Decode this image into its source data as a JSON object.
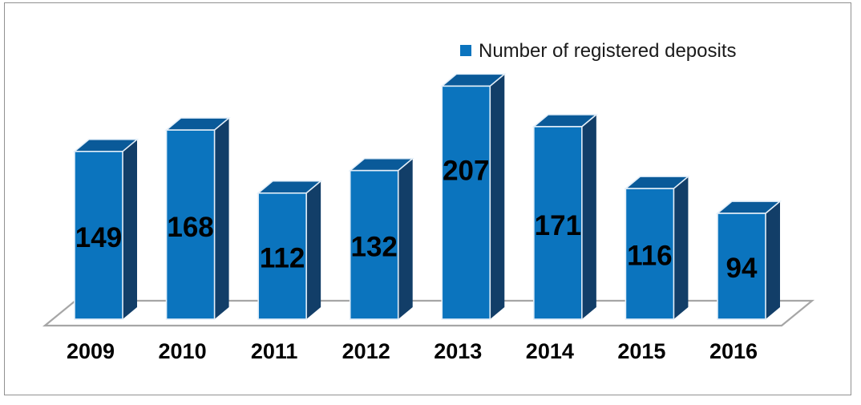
{
  "frame": {
    "background": "#FFFFFF",
    "border_color": "#919191"
  },
  "chart_data": {
    "type": "bar",
    "subtype": "3d-column",
    "title": "",
    "legend": {
      "label": "Number of registered deposits",
      "position": "top-center-right",
      "marker_color": "#0B74BE"
    },
    "categories": [
      "2009",
      "2010",
      "2011",
      "2012",
      "2013",
      "2014",
      "2015",
      "2016"
    ],
    "series": [
      {
        "name": "Number of registered deposits",
        "values": [
          149,
          168,
          112,
          132,
          207,
          171,
          116,
          94
        ]
      }
    ],
    "data_labels": true,
    "axes": {
      "x": {
        "labels_visible": true
      },
      "y": {
        "visible": false,
        "implied_range": [
          0,
          220
        ]
      }
    },
    "grid": false,
    "colors": {
      "bar_front": "#0B74BE",
      "bar_top": "#0A5A99",
      "bar_side": "#123E68",
      "bar_edge": "#E4EFF9",
      "floor_outline": "#A6A6A6",
      "floor_fill": "#FFFFFF",
      "data_label": "#000000",
      "category_label": "#000000",
      "legend_text": "#1A1A1A"
    }
  }
}
